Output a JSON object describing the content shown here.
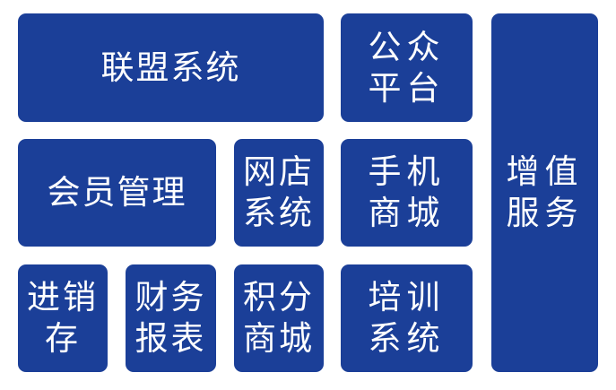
{
  "colors": {
    "tile_background": "#1b3f98",
    "tile_text": "#ffffff",
    "page_background": "#ffffff"
  },
  "tiles": {
    "alliance": {
      "lines": [
        "联盟系统"
      ]
    },
    "public": {
      "lines": [
        "公众",
        "平台"
      ]
    },
    "value": {
      "lines": [
        "增值",
        "服务"
      ]
    },
    "member": {
      "lines": [
        "会员管理"
      ]
    },
    "netshop": {
      "lines": [
        "网店",
        "系统"
      ]
    },
    "mobile": {
      "lines": [
        "手机",
        "商城"
      ]
    },
    "inventory": {
      "lines": [
        "进销",
        "存"
      ]
    },
    "finance": {
      "lines": [
        "财务",
        "报表"
      ]
    },
    "points": {
      "lines": [
        "积分",
        "商城"
      ]
    },
    "training": {
      "lines": [
        "培训",
        "系统"
      ]
    }
  }
}
